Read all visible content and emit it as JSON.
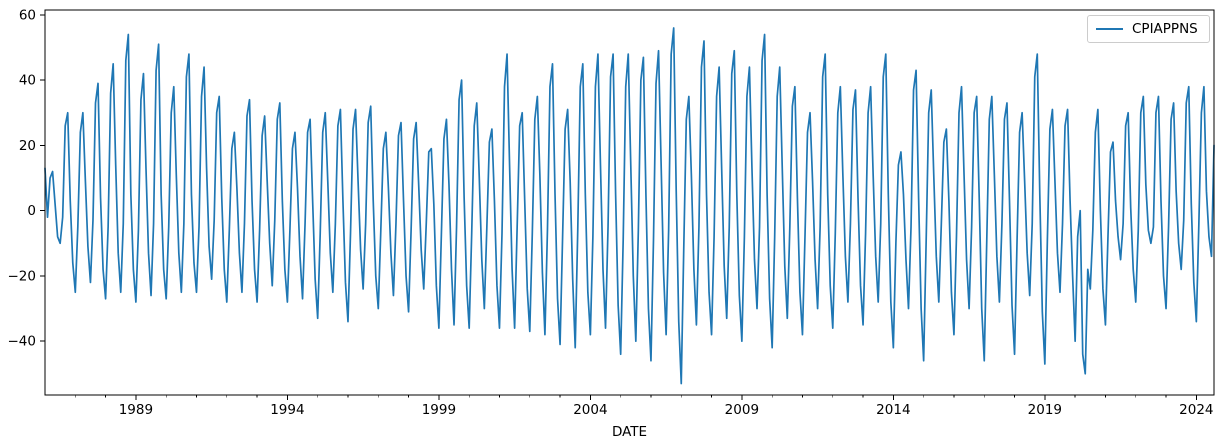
{
  "figure": {
    "background": "#ffffff",
    "spine_color": "#000000",
    "legend": {
      "label": "CPIAPPNS",
      "position": "upper right",
      "line_color": "#1f77b4"
    }
  },
  "chart_data": {
    "type": "line",
    "title": "",
    "xlabel": "DATE",
    "ylabel": "",
    "grid": false,
    "legend_position": "upper right",
    "series_name": "CPIAPPNS",
    "line_color": "#1f77b4",
    "frequency": "monthly",
    "start": "1986-01",
    "end": "2024-08",
    "xlim": [
      1986.0,
      2024.583
    ],
    "ylim": [
      -56.5,
      61.5
    ],
    "x_major_ticks": [
      1989,
      1994,
      1999,
      2004,
      2009,
      2014,
      2019,
      2024
    ],
    "x_tick_labels": [
      "1989",
      "1994",
      "1999",
      "2004",
      "2009",
      "2014",
      "2019",
      "2024"
    ],
    "x_minor_tick_interval_years": 1,
    "y_ticks": [
      -40,
      -20,
      0,
      20,
      40,
      60
    ],
    "y_tick_labels": [
      "−40",
      "−20",
      "0",
      "20",
      "40",
      "60"
    ],
    "values": [
      13,
      -2,
      10,
      12,
      2,
      -8,
      -10,
      -2,
      26,
      30,
      3,
      -16,
      -25,
      -5,
      24,
      30,
      9,
      -11,
      -22,
      -3,
      33,
      39,
      4,
      -18,
      -27,
      -5,
      36,
      45,
      14,
      -13,
      -25,
      -4,
      46,
      54,
      5,
      -18,
      -28,
      -6,
      34,
      42,
      13,
      -13,
      -26,
      -4,
      43,
      51,
      5,
      -18,
      -27,
      -5,
      30,
      38,
      11,
      -13,
      -25,
      -4,
      41,
      48,
      5,
      -16,
      -25,
      -5,
      35,
      44,
      13,
      -11,
      -21,
      -3,
      30,
      35,
      4,
      -18,
      -28,
      -6,
      19,
      24,
      7,
      -13,
      -25,
      -4,
      29,
      34,
      3,
      -18,
      -28,
      -6,
      23,
      29,
      9,
      -10,
      -23,
      -3,
      28,
      33,
      3,
      -18,
      -28,
      -6,
      19,
      24,
      7,
      -14,
      -27,
      -4,
      24,
      28,
      3,
      -21,
      -33,
      -7,
      24,
      30,
      9,
      -13,
      -25,
      -4,
      26,
      31,
      3,
      -22,
      -34,
      -7,
      25,
      31,
      9,
      -12,
      -24,
      -4,
      27,
      32,
      3,
      -20,
      -30,
      -6,
      19,
      24,
      7,
      -13,
      -26,
      -4,
      23,
      27,
      3,
      -20,
      -31,
      -6,
      22,
      27,
      8,
      -12,
      -24,
      -4,
      18,
      19,
      2,
      -23,
      -36,
      -7,
      22,
      28,
      8,
      -18,
      -35,
      -5,
      34,
      40,
      4,
      -23,
      -36,
      -7,
      26,
      33,
      10,
      -15,
      -30,
      -5,
      21,
      25,
      3,
      -23,
      -36,
      -7,
      38,
      48,
      14,
      -18,
      -36,
      -5,
      26,
      30,
      3,
      -24,
      -37,
      -7,
      28,
      35,
      11,
      -19,
      -38,
      -6,
      38,
      45,
      5,
      -27,
      -41,
      -8,
      25,
      31,
      9,
      -21,
      -42,
      -6,
      38,
      45,
      5,
      -25,
      -38,
      -8,
      38,
      48,
      14,
      -18,
      -36,
      -5,
      41,
      48,
      5,
      -29,
      -44,
      -9,
      38,
      48,
      14,
      -20,
      -40,
      -6,
      40,
      47,
      5,
      -30,
      -46,
      -9,
      39,
      49,
      15,
      -19,
      -38,
      -6,
      48,
      56,
      6,
      -34,
      -53,
      -11,
      28,
      35,
      11,
      -18,
      -35,
      -5,
      44,
      52,
      5,
      -25,
      -38,
      -8,
      35,
      44,
      13,
      -17,
      -33,
      -5,
      42,
      49,
      5,
      -26,
      -40,
      -8,
      35,
      44,
      13,
      -15,
      -30,
      -5,
      46,
      54,
      5,
      -27,
      -42,
      -8,
      35,
      44,
      13,
      -17,
      -33,
      -5,
      32,
      38,
      4,
      -25,
      -38,
      -8,
      24,
      30,
      9,
      -15,
      -30,
      -5,
      41,
      48,
      5,
      -23,
      -36,
      -7,
      30,
      38,
      11,
      -14,
      -28,
      -4,
      31,
      37,
      4,
      -23,
      -35,
      -7,
      30,
      38,
      11,
      -14,
      -28,
      -4,
      41,
      48,
      5,
      -28,
      -42,
      -10,
      14,
      18,
      5,
      -15,
      -30,
      -5,
      37,
      43,
      4,
      -30,
      -46,
      -9,
      30,
      37,
      11,
      -14,
      -28,
      -4,
      21,
      25,
      3,
      -25,
      -38,
      -8,
      30,
      38,
      11,
      -15,
      -30,
      -5,
      30,
      35,
      4,
      -30,
      -46,
      -9,
      28,
      35,
      11,
      -14,
      -28,
      -4,
      28,
      33,
      3,
      -29,
      -44,
      -9,
      24,
      30,
      9,
      -13,
      -26,
      -4,
      41,
      48,
      5,
      -31,
      -47,
      -9,
      25,
      31,
      9,
      -13,
      -25,
      -4,
      26,
      31,
      3,
      -20,
      -40,
      -8,
      0,
      -44,
      -50,
      -18,
      -24,
      -6,
      24,
      31,
      0,
      -24,
      -35,
      -8,
      18,
      21,
      3,
      -8,
      -15,
      -4,
      26,
      30,
      1,
      -18,
      -28,
      -6,
      30,
      35,
      8,
      -6,
      -10,
      -5,
      30,
      35,
      3,
      -20,
      -30,
      -5,
      28,
      33,
      6,
      -10,
      -18,
      -3,
      33,
      38,
      2,
      -22,
      -34,
      -4,
      30,
      38,
      6,
      -8,
      -14,
      20
    ]
  }
}
